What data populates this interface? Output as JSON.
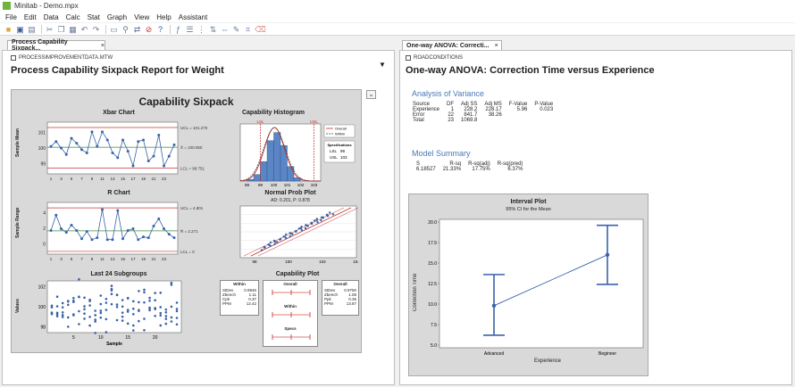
{
  "app": {
    "title": "Minitab - Demo.mpx"
  },
  "menu": [
    "File",
    "Edit",
    "Data",
    "Calc",
    "Stat",
    "Graph",
    "View",
    "Help",
    "Assistant"
  ],
  "left": {
    "tab": "Process Capability Sixpack...",
    "worksheet": "PROCESSIMPROVEMENTDATA.MTW",
    "title": "Process Capability Sixpack Report for Weight",
    "six": {
      "title": "Capability Sixpack",
      "xbar": {
        "title": "Xbar Chart",
        "ylabel": "Sample Mean",
        "ucl": "UCL = 101.270",
        "center": "X̄ = 100.050",
        "lcl": "LCL = 98.751",
        "yticks": [
          "101",
          "100",
          "99"
        ],
        "xticks": [
          "1",
          "3",
          "5",
          "7",
          "9",
          "11",
          "13",
          "15",
          "17",
          "19",
          "21",
          "23"
        ],
        "values": [
          100.1,
          100.4,
          100.0,
          99.6,
          100.6,
          100.3,
          99.9,
          99.7,
          101.0,
          100.1,
          101.0,
          100.5,
          99.7,
          99.4,
          100.5,
          99.8,
          98.9,
          100.4,
          100.5,
          99.2,
          99.5,
          100.8,
          98.9,
          99.5,
          100.2
        ]
      },
      "r": {
        "title": "R Chart",
        "ylabel": "Sample Range",
        "ucl": "UCL = 4.801",
        "center": "R̄ = 2.271",
        "lcl": "LCL = 0",
        "yticks": [
          "4",
          "2",
          "0"
        ],
        "xticks": [
          "1",
          "3",
          "5",
          "7",
          "9",
          "11",
          "13",
          "15",
          "17",
          "19",
          "21",
          "23"
        ],
        "values": [
          2.3,
          4.0,
          2.5,
          2.1,
          2.9,
          2.3,
          1.4,
          2.2,
          1.3,
          1.5,
          4.6,
          1.3,
          1.3,
          4.5,
          1.4,
          2.3,
          2.5,
          1.3,
          1.6,
          1.5,
          2.8,
          3.6,
          2.5,
          1.9,
          1.5
        ]
      },
      "last24": {
        "title": "Last 24 Subgroups",
        "ylabel": "Values",
        "xlabel": "Sample",
        "yticks": [
          "102",
          "100",
          "98"
        ],
        "xticks": [
          "5",
          "10",
          "15",
          "20"
        ]
      },
      "hist": {
        "title": "Capability Histogram",
        "lsl": "LSL",
        "usl": "USL",
        "legend": [
          "Overall",
          "Within"
        ],
        "spec_title": "Specifications",
        "spec_lsl": "LSL",
        "spec_lsl_val": "99",
        "spec_usl": "USL",
        "spec_usl_val": "103",
        "xticks": [
          "98",
          "99",
          "100",
          "101",
          "102",
          "103"
        ],
        "bins": [
          1,
          4,
          12,
          25,
          30,
          22,
          9,
          2
        ]
      },
      "prob": {
        "title": "Normal Prob Plot",
        "subtitle": "AD: 0.201, P: 0.878",
        "xticks": [
          "98",
          "100",
          "102",
          "104"
        ]
      },
      "capplot": {
        "title": "Capability Plot",
        "within_title": "Within",
        "overall_col": "Overall",
        "overall_title": "Overall",
        "within": [
          [
            "StDev",
            "0.9946"
          ],
          [
            "Zbench",
            "1.11"
          ],
          [
            "Cpk",
            "0.37"
          ],
          [
            "PPM",
            "12.42"
          ]
        ],
        "overall": [
          [
            "StDev",
            "0.9750"
          ],
          [
            "Zbench",
            "1.08"
          ],
          [
            "Ppk",
            "0.36"
          ],
          [
            "PPM",
            "13.87"
          ]
        ],
        "within_label": "Within",
        "specs_label": "Specs"
      }
    }
  },
  "right": {
    "tab": "One-way ANOVA: Correcti...",
    "worksheet": "ROADCONDITIONS",
    "title": "One-way ANOVA:  Correction Time versus Experience",
    "aov_title": "Analysis of Variance",
    "aov_head": [
      "Source",
      "DF",
      "Adj SS",
      "Adj MS",
      "F-Value",
      "P-Value"
    ],
    "aov_rows": [
      [
        "Experience",
        "1",
        "228.2",
        "228.17",
        "5.96",
        "0.023"
      ],
      [
        "Error",
        "22",
        "841.7",
        "38.26",
        "",
        ""
      ],
      [
        "Total",
        "23",
        "1069.8",
        "",
        "",
        ""
      ]
    ],
    "summary_title": "Model Summary",
    "summary_head": [
      "S",
      "R-sq",
      "R-sq(adj)",
      "R-sq(pred)"
    ],
    "summary_row": [
      "6.18527",
      "21.33%",
      "17.75%",
      "6.37%"
    ],
    "interval": {
      "title": "Interval Plot",
      "subtitle": "95% CI for the Mean",
      "ylabel": "Correction Time",
      "xlabel": "Experience",
      "yticks": [
        "20.0",
        "17.5",
        "15.0",
        "12.5",
        "10.0",
        "7.5",
        "5.0"
      ],
      "ylim": [
        5,
        20
      ],
      "groups": [
        {
          "name": "Advanced",
          "mean": 9.8,
          "lo": 6.2,
          "hi": 13.6
        },
        {
          "name": "Beginner",
          "mean": 16.0,
          "lo": 12.4,
          "hi": 19.6
        }
      ]
    }
  }
}
